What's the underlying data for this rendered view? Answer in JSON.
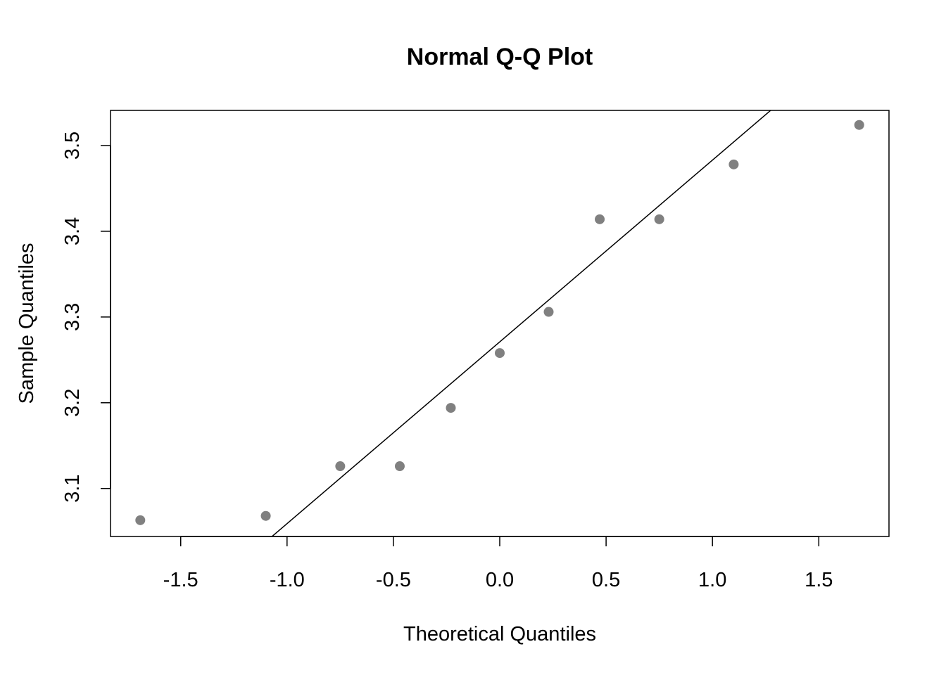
{
  "chart_data": {
    "type": "scatter",
    "title": "Normal Q-Q Plot",
    "xlabel": "Theoretical Quantiles",
    "ylabel": "Sample Quantiles",
    "xlim": [
      -1.83,
      1.83
    ],
    "ylim": [
      3.044,
      3.541
    ],
    "x_ticks": [
      -1.5,
      -1.0,
      -0.5,
      0.0,
      0.5,
      1.0,
      1.5
    ],
    "x_tick_labels": [
      "-1.5",
      "-1.0",
      "-0.5",
      "0.0",
      "0.5",
      "1.0",
      "1.5"
    ],
    "y_ticks": [
      3.1,
      3.2,
      3.3,
      3.4,
      3.5
    ],
    "y_tick_labels": [
      "3.1",
      "3.2",
      "3.3",
      "3.4",
      "3.5"
    ],
    "grid": false,
    "points": [
      {
        "x": -1.69,
        "y": 3.063
      },
      {
        "x": -1.1,
        "y": 3.068
      },
      {
        "x": -0.75,
        "y": 3.126
      },
      {
        "x": -0.47,
        "y": 3.126
      },
      {
        "x": -0.23,
        "y": 3.194
      },
      {
        "x": 0.0,
        "y": 3.258
      },
      {
        "x": 0.23,
        "y": 3.306
      },
      {
        "x": 0.47,
        "y": 3.414
      },
      {
        "x": 0.75,
        "y": 3.414
      },
      {
        "x": 1.1,
        "y": 3.478
      },
      {
        "x": 1.69,
        "y": 3.524
      }
    ],
    "reference_line": {
      "intercept": 3.271,
      "slope": 0.212
    },
    "point_color": "#808080",
    "line_color": "#000000"
  }
}
